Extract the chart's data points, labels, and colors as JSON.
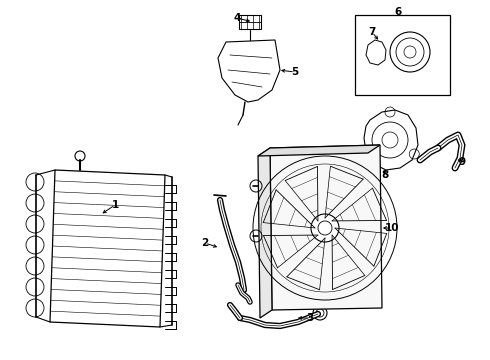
{
  "background_color": "#ffffff",
  "line_color": "#000000",
  "fig_width": 4.9,
  "fig_height": 3.6,
  "dpi": 100,
  "font_size": 7.5
}
